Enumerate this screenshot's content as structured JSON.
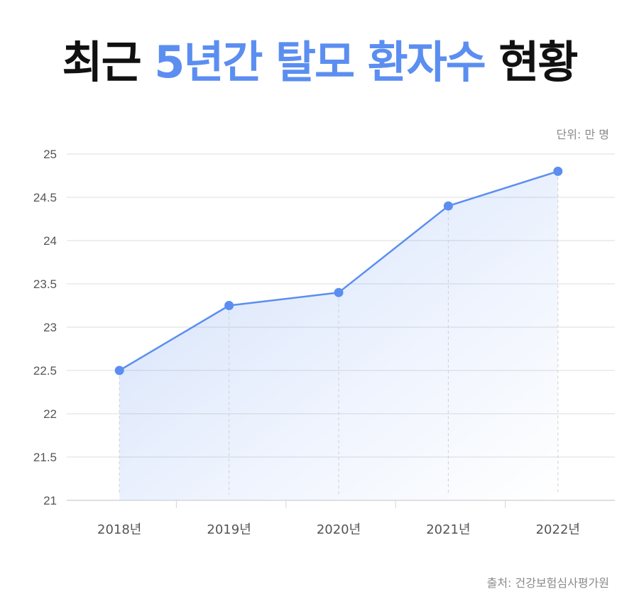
{
  "title": {
    "part1": "최근 ",
    "part2": "5년간 탈모 환자수",
    "part3": " 현황"
  },
  "unit_label": "단위: 만 명",
  "source_label": "출처: 건강보험심사평가원",
  "colors": {
    "accent": "#5b8ef0",
    "title": "#111111",
    "grid": "#dddddd",
    "text": "#555555",
    "muted": "#8a8a8a"
  },
  "chart_data": {
    "type": "line",
    "title": "최근 5년간 탈모 환자수 현황",
    "xlabel": "",
    "ylabel": "",
    "unit": "만 명",
    "categories": [
      "2018년",
      "2019년",
      "2020년",
      "2021년",
      "2022년"
    ],
    "series": [
      {
        "name": "탈모 환자수",
        "values": [
          22.5,
          23.25,
          23.4,
          24.4,
          24.8
        ]
      }
    ],
    "ylim": [
      21,
      25
    ],
    "yticks": [
      "21",
      "21.5",
      "22",
      "22.5",
      "23",
      "23.5",
      "24",
      "24.5",
      "25"
    ],
    "grid": true,
    "legend": "none",
    "area_fill": true,
    "source": "건강보험심사평가원"
  }
}
